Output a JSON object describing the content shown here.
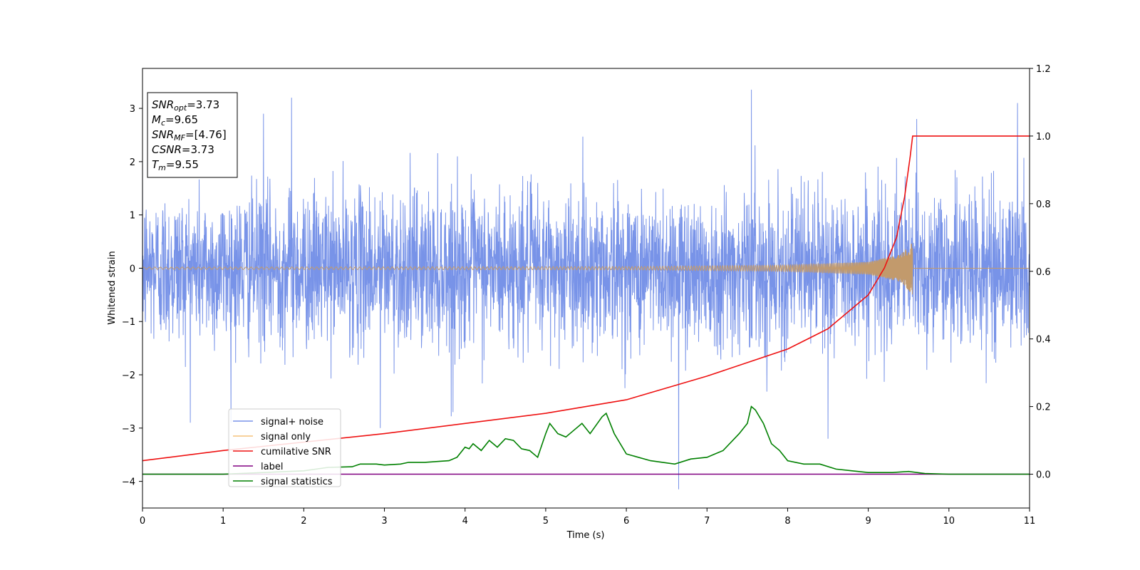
{
  "chart_data": {
    "type": "line",
    "xlabel": "Time (s)",
    "ylabel": "Whitened strain",
    "xlim": [
      0,
      11
    ],
    "ylim": [
      -4.5,
      3.75
    ],
    "ylim_right": [
      -0.1,
      1.2
    ],
    "x_ticks": [
      0,
      1,
      2,
      3,
      4,
      5,
      6,
      7,
      8,
      9,
      10,
      11
    ],
    "y_ticks": [
      -4,
      -3,
      -2,
      -1,
      0,
      1,
      2,
      3
    ],
    "y_right_ticks": [
      0.0,
      0.2,
      0.4,
      0.6,
      0.8,
      1.0,
      1.2
    ],
    "x_tick_labels": [
      "0",
      "1",
      "2",
      "3",
      "4",
      "5",
      "6",
      "7",
      "8",
      "9",
      "10",
      "11"
    ],
    "y_tick_labels": [
      "−4",
      "−3",
      "−2",
      "−1",
      "0",
      "1",
      "2",
      "3"
    ],
    "y_right_tick_labels": [
      "0.0",
      "0.2",
      "0.4",
      "0.6",
      "0.8",
      "1.0",
      "1.2"
    ],
    "grid": false,
    "legend_position": "lower-left",
    "info_box": [
      {
        "main": "SNR",
        "sub": "opt",
        "rest": "=3.73"
      },
      {
        "main": "M",
        "sub": "c",
        "rest": "=9.65"
      },
      {
        "main": "SNR",
        "sub": "MF",
        "rest": "=[4.76]"
      },
      {
        "main": "CSNR",
        "sub": "",
        "rest": "=3.73"
      },
      {
        "main": "T",
        "sub": "m",
        "rest": "=9.55"
      }
    ],
    "series": [
      {
        "name": "signal+ noise",
        "axis": "left",
        "color": "#7893e8",
        "noise_sigma": 0.72,
        "spikes": [
          {
            "x": 1.85,
            "y": 3.2
          },
          {
            "x": 6.65,
            "y": -4.15
          },
          {
            "x": 7.55,
            "y": 3.35
          },
          {
            "x": 10.85,
            "y": 3.1
          },
          {
            "x": 2.95,
            "y": -3.0
          },
          {
            "x": 8.5,
            "y": -3.2
          },
          {
            "x": 0.9,
            "y": -0.45
          },
          {
            "x": 1.5,
            "y": 2.9
          },
          {
            "x": 3.85,
            "y": -2.7
          },
          {
            "x": 9.6,
            "y": 2.8
          }
        ]
      },
      {
        "name": "signal only",
        "axis": "left",
        "color": "#f5c27a",
        "chirp_end": 9.55,
        "envelope": [
          [
            0,
            0.02
          ],
          [
            6,
            0.03
          ],
          [
            8,
            0.06
          ],
          [
            9,
            0.12
          ],
          [
            9.4,
            0.26
          ],
          [
            9.55,
            0.5
          ]
        ]
      },
      {
        "name": "cumilative SNR",
        "axis": "right",
        "color": "#ee1111",
        "points": [
          [
            0,
            0.04
          ],
          [
            1,
            0.07
          ],
          [
            2,
            0.095
          ],
          [
            3,
            0.12
          ],
          [
            4,
            0.15
          ],
          [
            5,
            0.18
          ],
          [
            6,
            0.22
          ],
          [
            7,
            0.29
          ],
          [
            7.5,
            0.33
          ],
          [
            8,
            0.37
          ],
          [
            8.5,
            0.43
          ],
          [
            9,
            0.53
          ],
          [
            9.2,
            0.61
          ],
          [
            9.35,
            0.7
          ],
          [
            9.45,
            0.82
          ],
          [
            9.52,
            0.94
          ],
          [
            9.55,
            1.0
          ],
          [
            11,
            1.0
          ]
        ]
      },
      {
        "name": "label",
        "axis": "right",
        "color": "#800080",
        "points": [
          [
            0,
            0.0
          ],
          [
            11,
            0.0
          ]
        ]
      },
      {
        "name": "signal statistics",
        "axis": "right",
        "color": "#008000",
        "points": [
          [
            0,
            0.0
          ],
          [
            0.5,
            0.0
          ],
          [
            1.0,
            0.0
          ],
          [
            1.5,
            0.005
          ],
          [
            2.0,
            0.01
          ],
          [
            2.3,
            0.02
          ],
          [
            2.6,
            0.022
          ],
          [
            2.7,
            0.03
          ],
          [
            2.9,
            0.03
          ],
          [
            3.0,
            0.027
          ],
          [
            3.2,
            0.03
          ],
          [
            3.3,
            0.035
          ],
          [
            3.5,
            0.035
          ],
          [
            3.8,
            0.04
          ],
          [
            3.9,
            0.05
          ],
          [
            4.0,
            0.08
          ],
          [
            4.05,
            0.075
          ],
          [
            4.1,
            0.09
          ],
          [
            4.2,
            0.07
          ],
          [
            4.3,
            0.1
          ],
          [
            4.4,
            0.08
          ],
          [
            4.5,
            0.105
          ],
          [
            4.6,
            0.1
          ],
          [
            4.7,
            0.075
          ],
          [
            4.8,
            0.07
          ],
          [
            4.9,
            0.05
          ],
          [
            5.0,
            0.12
          ],
          [
            5.05,
            0.15
          ],
          [
            5.15,
            0.12
          ],
          [
            5.25,
            0.11
          ],
          [
            5.35,
            0.13
          ],
          [
            5.45,
            0.15
          ],
          [
            5.55,
            0.12
          ],
          [
            5.7,
            0.17
          ],
          [
            5.75,
            0.18
          ],
          [
            5.85,
            0.12
          ],
          [
            6.0,
            0.06
          ],
          [
            6.3,
            0.04
          ],
          [
            6.6,
            0.03
          ],
          [
            6.8,
            0.045
          ],
          [
            7.0,
            0.05
          ],
          [
            7.2,
            0.07
          ],
          [
            7.4,
            0.12
          ],
          [
            7.5,
            0.15
          ],
          [
            7.55,
            0.2
          ],
          [
            7.6,
            0.19
          ],
          [
            7.7,
            0.15
          ],
          [
            7.8,
            0.09
          ],
          [
            7.9,
            0.07
          ],
          [
            8.0,
            0.04
          ],
          [
            8.2,
            0.03
          ],
          [
            8.4,
            0.03
          ],
          [
            8.6,
            0.015
          ],
          [
            8.8,
            0.01
          ],
          [
            9.0,
            0.005
          ],
          [
            9.3,
            0.005
          ],
          [
            9.5,
            0.008
          ],
          [
            9.7,
            0.002
          ],
          [
            10.0,
            0.0
          ],
          [
            11.0,
            0.0
          ]
        ]
      }
    ]
  }
}
